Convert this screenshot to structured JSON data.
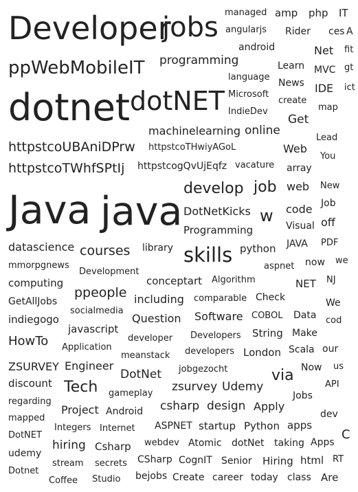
{
  "words": [
    "Developer",
    "jobs",
    "ppWebMobileIT",
    "programming",
    "dotnet",
    "dotNET",
    "machinelearning",
    "online",
    "httpstcoUBAniDPrw",
    "httpstcoTHwiyAGoL",
    "httpstcoTWhfSPtIj",
    "httpstcogQvUjEqfz",
    "vacature",
    "Java",
    "java",
    "develop",
    "job",
    "web",
    "DotNetKicks",
    "w",
    "code",
    "Programming",
    "Visual",
    "datascience",
    "courses",
    "library",
    "skills",
    "python",
    "JAVA",
    "PDF",
    "mmorpgnews",
    "Development",
    "aspnet",
    "now",
    "we",
    "computing",
    "conceptart",
    "Algorithm",
    "NET",
    "NJ",
    "GetAllJobs",
    "ppeople",
    "including",
    "comparable",
    "Check",
    "We",
    "indiegogo",
    "socialmedia",
    "Question",
    "Software",
    "COBOL",
    "Data",
    "cod",
    "javascript",
    "developer",
    "Developers",
    "String",
    "Make",
    "HowTo",
    "Application",
    "meanstack",
    "developers",
    "London",
    "Scala",
    "our",
    "ZSURVEY",
    "Engineer",
    "DotNet",
    "jobgezocht",
    "Now",
    "us",
    "discount",
    "via",
    "Tech",
    "zsurvey",
    "Udemy",
    "API",
    "gameplay",
    "Jobs",
    "regarding",
    "csharp",
    "design",
    "Apply",
    "Project",
    "Android",
    "dev",
    "mapped",
    "Integers",
    "Internet",
    "ASPNET",
    "startup",
    "Python",
    "apps",
    "C",
    "DotNET",
    "hiring",
    "Csharp",
    "webdev",
    "Atomic",
    "dotNet",
    "taking",
    "Apps",
    "udemy",
    "CSharp",
    "CognIT",
    "Senior",
    "Hiring",
    "html",
    "RT",
    "stream",
    "secrets",
    "Dotnet",
    "Coffee",
    "Studio",
    "bejobs",
    "Create",
    "career",
    "today",
    "class",
    "Are",
    "managed",
    "amp",
    "php",
    "IT",
    "angularjs",
    "Rider",
    "ces",
    "A",
    "android",
    "Net",
    "fit",
    "Learn",
    "MVC",
    "gt",
    "language",
    "News",
    "IDE",
    "ict",
    "Microsoft",
    "create",
    "map",
    "IndieDev",
    "Get",
    "Lead",
    "Web",
    "You",
    "array",
    "New",
    "Job",
    "off"
  ]
}
